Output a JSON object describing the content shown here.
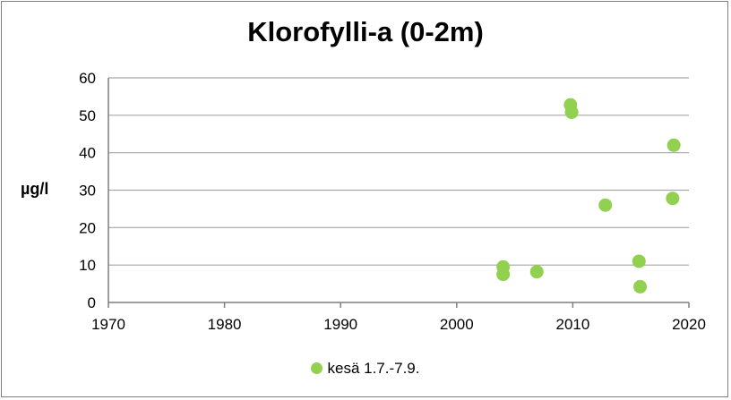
{
  "chart_data": {
    "type": "scatter",
    "title": "Klorofylli-a (0-2m)",
    "xlabel": "",
    "ylabel": "µg/l",
    "xlim": [
      1970,
      2020
    ],
    "ylim": [
      0,
      60
    ],
    "xticks": [
      1970,
      1980,
      1990,
      2000,
      2010,
      2020
    ],
    "yticks": [
      0,
      10,
      20,
      30,
      40,
      50,
      60
    ],
    "grid": "horizontal",
    "legend_position": "bottom",
    "series": [
      {
        "name": "kesä 1.7.-7.9.",
        "color": "#92d050",
        "points": [
          {
            "x": 2004.0,
            "y": 9.5
          },
          {
            "x": 2004.0,
            "y": 7.5
          },
          {
            "x": 2006.9,
            "y": 8.2
          },
          {
            "x": 2009.8,
            "y": 52.8
          },
          {
            "x": 2009.9,
            "y": 50.8
          },
          {
            "x": 2012.8,
            "y": 26.0
          },
          {
            "x": 2015.7,
            "y": 11.0
          },
          {
            "x": 2015.8,
            "y": 4.2
          },
          {
            "x": 2018.6,
            "y": 27.8
          },
          {
            "x": 2018.7,
            "y": 42.0
          }
        ]
      }
    ]
  }
}
